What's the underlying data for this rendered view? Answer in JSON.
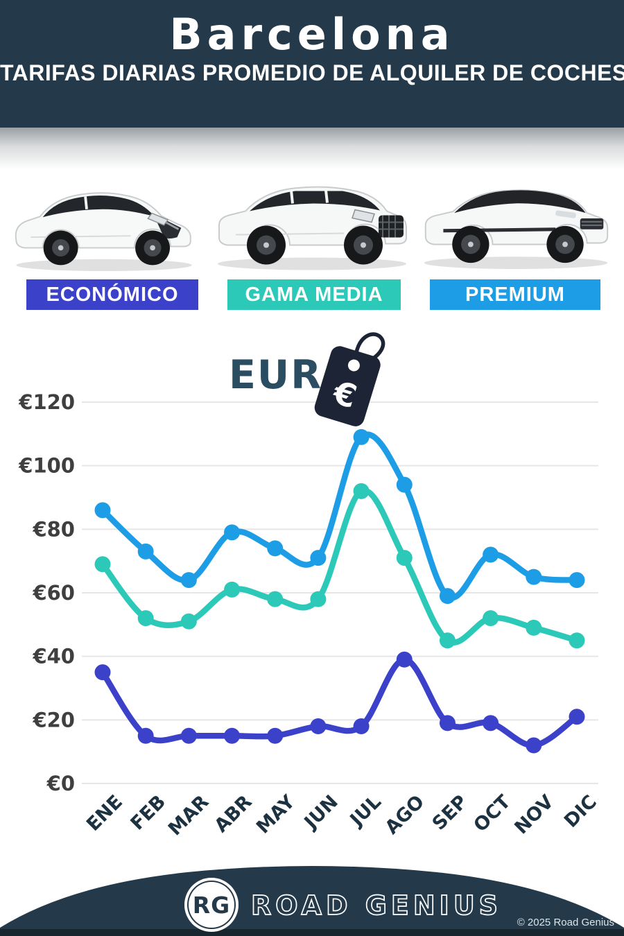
{
  "header": {
    "title": "Barcelona",
    "subtitle": "TARIFAS DIARIAS PROMEDIO DE ALQUILER DE COCHES"
  },
  "car_classes": [
    {
      "label": "ECONÓMICO",
      "color": "#3c41ca"
    },
    {
      "label": "GAMA MEDIA",
      "color": "#2cc9b9"
    },
    {
      "label": "PREMIUM",
      "color": "#1c9de6"
    }
  ],
  "currency": {
    "label": "EUR",
    "symbol": "€"
  },
  "chart_data": {
    "type": "line",
    "categories": [
      "ENE",
      "FEB",
      "MAR",
      "ABR",
      "MAY",
      "JUN",
      "JUL",
      "AGO",
      "SEP",
      "OCT",
      "NOV",
      "DIC"
    ],
    "series": [
      {
        "name": "PREMIUM",
        "color": "#1c9de6",
        "values": [
          86,
          73,
          64,
          79,
          74,
          71,
          109,
          94,
          59,
          72,
          65,
          64
        ]
      },
      {
        "name": "GAMA MEDIA",
        "color": "#2cc9b9",
        "values": [
          69,
          52,
          51,
          61,
          58,
          58,
          92,
          71,
          45,
          52,
          49,
          45
        ]
      },
      {
        "name": "ECONÓMICO",
        "color": "#3c41ca",
        "values": [
          35,
          15,
          15,
          15,
          15,
          18,
          18,
          39,
          19,
          19,
          12,
          21
        ]
      }
    ],
    "ylabel_prefix": "€",
    "yticks": [
      0,
      20,
      40,
      60,
      80,
      100,
      120
    ],
    "ylim": [
      0,
      120
    ],
    "grid": true,
    "legend_position": "color-coded badges above chart"
  },
  "footer": {
    "logo_initials": "RG",
    "brand": "ROAD GENIUS",
    "copyright": "© 2025 Road Genius"
  },
  "colors": {
    "header_bg": "#24394a",
    "footer_bg": "#24394a",
    "footer_strip": "#17262f",
    "grid": "#e6e6e6",
    "axis_text": "#3f3f3f",
    "month_text": "#1d3240",
    "eur_text": "#2b4d61",
    "tag": "#1d2436"
  }
}
